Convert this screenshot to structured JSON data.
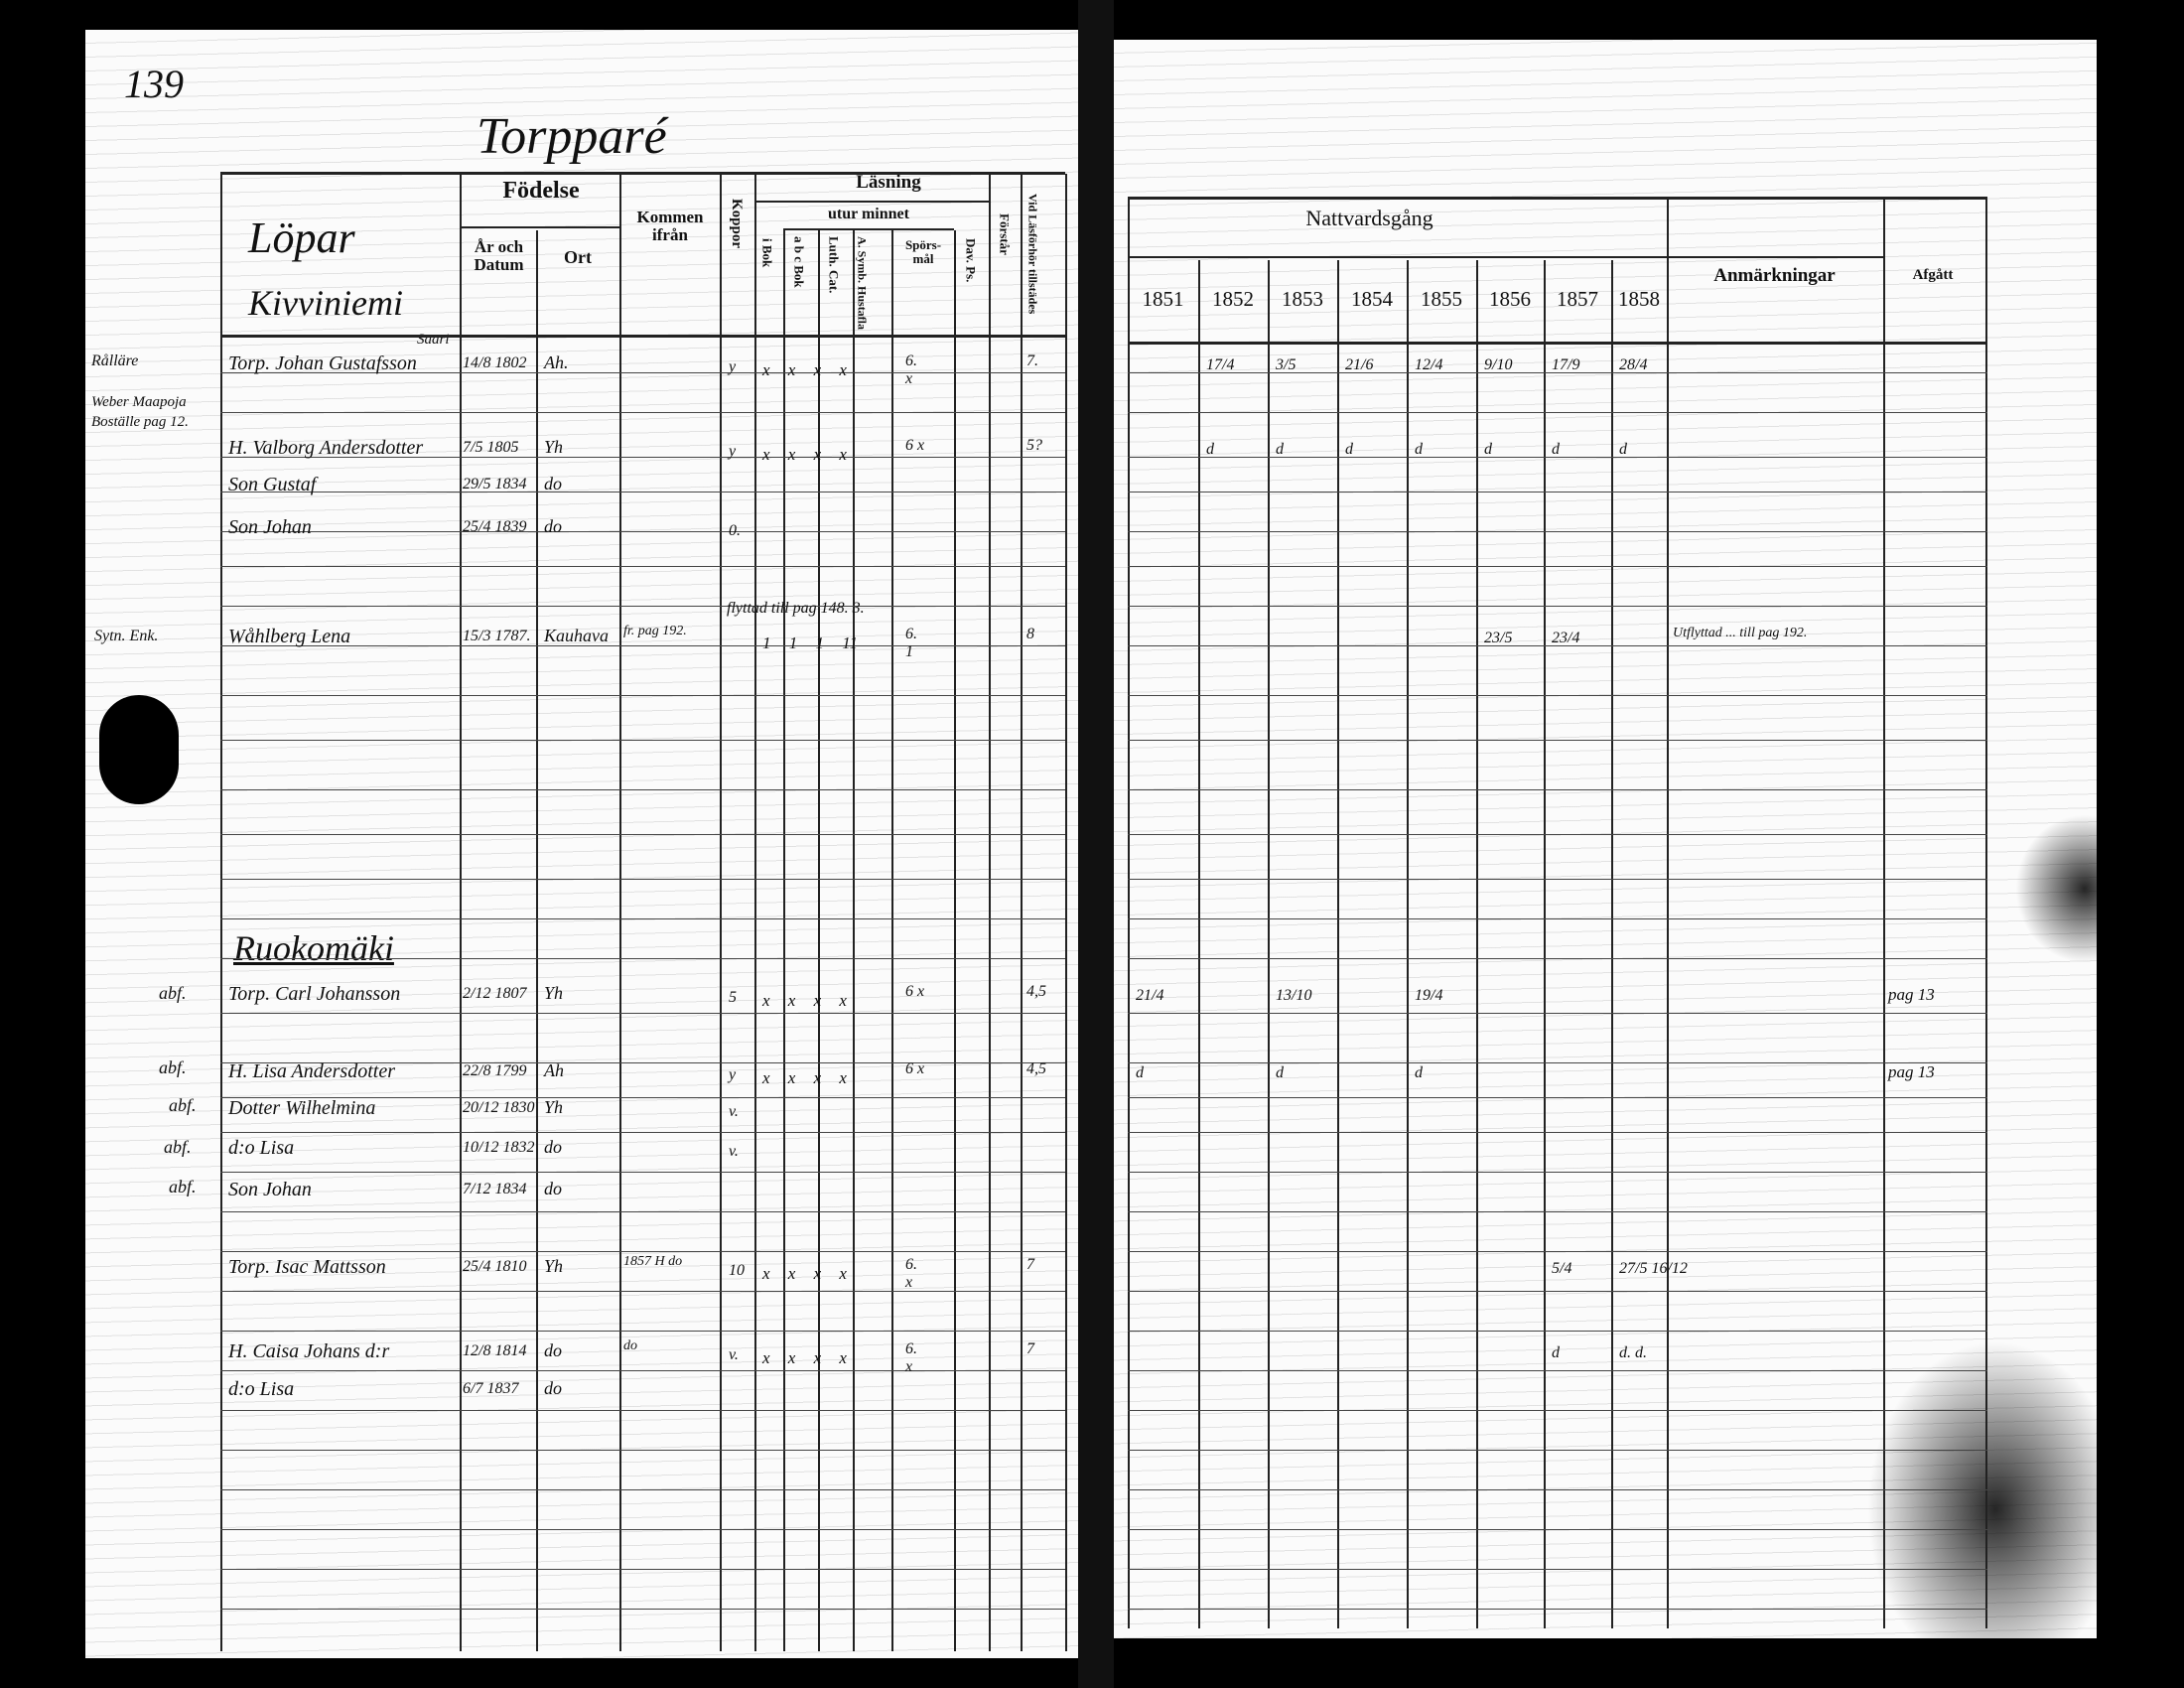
{
  "page_number": "139",
  "title": "Torpparé",
  "left": {
    "headers": {
      "lopnr": "Löpar",
      "fodelse": "Födelse",
      "ar_och_datum": "År och Datum",
      "ort": "Ort",
      "kommen_ifran": "Kommen ifrån",
      "koppor": "Koppor",
      "lasning": "Läsning",
      "i_bok": "i Bok",
      "utur_minnet": "utur minnet",
      "abc_bok": "a b c Bok",
      "luth_cat": "Luth. Cat.",
      "symb": "A. Symb. Hustafla",
      "sporsmal": "Spörs- mål",
      "dav_ps": "Dav. Ps.",
      "forstar": "Förstår",
      "vid_lasforhor": "Vid Läsförhör tillstädes"
    },
    "sections": [
      {
        "place": "Kivviniemi",
        "sub": "Saari"
      },
      {
        "place": "Ruokomäki"
      }
    ],
    "margin_notes": [
      "Rålläre",
      "Weber Maapoja Boställe pag 12.",
      "Sytn. Enk.",
      "abf.",
      "abf.",
      "abf.",
      "abf.",
      "abf."
    ],
    "rows": [
      {
        "name": "Torp. Johan Gustafsson",
        "date": "14/8 1802",
        "place": "Ah.",
        "from": "",
        "koppor": "y",
        "marks": "x  x  x  x",
        "sporsmal": "6. x",
        "vid": "7."
      },
      {
        "name": "H. Valborg Andersdotter",
        "date": "7/5 1805",
        "place": "Yh",
        "from": "",
        "koppor": "y",
        "marks": "x  x  x  x",
        "sporsmal": "6 x",
        "vid": "5?"
      },
      {
        "name": "Son Gustaf",
        "date": "29/5 1834",
        "place": "do",
        "from": "",
        "koppor": "",
        "marks": "",
        "sporsmal": "",
        "vid": ""
      },
      {
        "name": "Son Johan",
        "date": "25/4 1839",
        "place": "do",
        "from": "",
        "koppor": "0.",
        "marks": "",
        "sporsmal": "",
        "vid": ""
      },
      {
        "name": "Wåhlberg Lena",
        "date": "15/3 1787.",
        "place": "Kauhava",
        "from": "fr. pag 192.",
        "koppor": "flyttad till pag 148. 3.",
        "marks": "1  1  1  11",
        "sporsmal": "6. 1",
        "vid": "8"
      },
      {
        "name": "Torp. Carl Johansson",
        "date": "2/12 1807",
        "place": "Yh",
        "from": "",
        "koppor": "5",
        "marks": "x  x  x  x",
        "sporsmal": "6 x",
        "vid": "4,5"
      },
      {
        "name": "H. Lisa Andersdotter",
        "date": "22/8 1799",
        "place": "Ah",
        "from": "",
        "koppor": "y",
        "marks": "x  x  x  x",
        "sporsmal": "6 x",
        "vid": "4,5"
      },
      {
        "name": "Dotter Wilhelmina",
        "date": "20/12 1830",
        "place": "Yh",
        "from": "",
        "koppor": "v.",
        "marks": "",
        "sporsmal": "",
        "vid": ""
      },
      {
        "name": "d:o Lisa",
        "date": "10/12 1832",
        "place": "do",
        "from": "",
        "koppor": "v.",
        "marks": "",
        "sporsmal": "",
        "vid": ""
      },
      {
        "name": "Son Johan",
        "date": "7/12 1834",
        "place": "do",
        "from": "",
        "koppor": "",
        "marks": "",
        "sporsmal": "",
        "vid": ""
      },
      {
        "name": "Torp. Isac Mattsson",
        "date": "25/4 1810",
        "place": "Yh",
        "from": "1857 H do",
        "koppor": "10",
        "marks": "x  x  x  x",
        "sporsmal": "6. x",
        "vid": "7"
      },
      {
        "name": "H. Caisa Johans d:r",
        "date": "12/8 1814",
        "place": "do",
        "from": "do",
        "koppor": "v.",
        "marks": "x  x  x  x",
        "sporsmal": "6. x",
        "vid": "7"
      },
      {
        "name": "d:o Lisa",
        "date": "6/7 1837",
        "place": "do",
        "from": "",
        "koppor": "",
        "marks": "",
        "sporsmal": "",
        "vid": ""
      }
    ]
  },
  "right": {
    "headers": {
      "nattvardsgang": "Nattvardsgång",
      "years": [
        "1851",
        "1852",
        "1853",
        "1854",
        "1855",
        "1856",
        "1857",
        "1858"
      ],
      "anmarkningar": "Anmärkningar",
      "afgatt": "Afgått"
    },
    "rows": [
      {
        "years": [
          "",
          "17/4",
          "3/5",
          "21/6",
          "12/4",
          "9/10",
          "17/9",
          "28/4"
        ],
        "remark": "",
        "afgatt": ""
      },
      {
        "years": [
          "",
          "d",
          "d",
          "d",
          "d",
          "d",
          "d",
          "d"
        ],
        "remark": "",
        "afgatt": ""
      },
      {
        "years": [
          "",
          "",
          "",
          "",
          "",
          "",
          "",
          ""
        ],
        "remark": "",
        "afgatt": ""
      },
      {
        "years": [
          "",
          "",
          "",
          "",
          "",
          "",
          "",
          ""
        ],
        "remark": "",
        "afgatt": ""
      },
      {
        "years": [
          "",
          "",
          "",
          "",
          "",
          "23/5",
          "23/4",
          ""
        ],
        "remark": "Utflyttad ... till pag 192.",
        "afgatt": ""
      },
      {
        "years": [
          "21/4",
          "",
          "13/10",
          "",
          "19/4",
          "",
          "",
          ""
        ],
        "remark": "",
        "afgatt": "pag 13"
      },
      {
        "years": [
          "d",
          "",
          "d",
          "",
          "d",
          "",
          "",
          ""
        ],
        "remark": "",
        "afgatt": "pag 13"
      },
      {
        "years": [
          "",
          "",
          "",
          "",
          "",
          "",
          "",
          ""
        ],
        "remark": "",
        "afgatt": ""
      },
      {
        "years": [
          "",
          "",
          "",
          "",
          "",
          "",
          "",
          ""
        ],
        "remark": "",
        "afgatt": ""
      },
      {
        "years": [
          "",
          "",
          "",
          "",
          "",
          "",
          "",
          ""
        ],
        "remark": "",
        "afgatt": ""
      },
      {
        "years": [
          "",
          "",
          "",
          "",
          "",
          "",
          "5/4",
          "27/5 16/12"
        ],
        "remark": "",
        "afgatt": ""
      },
      {
        "years": [
          "",
          "",
          "",
          "",
          "",
          "",
          "d",
          "d. d."
        ],
        "remark": "",
        "afgatt": ""
      },
      {
        "years": [
          "",
          "",
          "",
          "",
          "",
          "",
          "",
          ""
        ],
        "remark": "",
        "afgatt": ""
      }
    ]
  }
}
